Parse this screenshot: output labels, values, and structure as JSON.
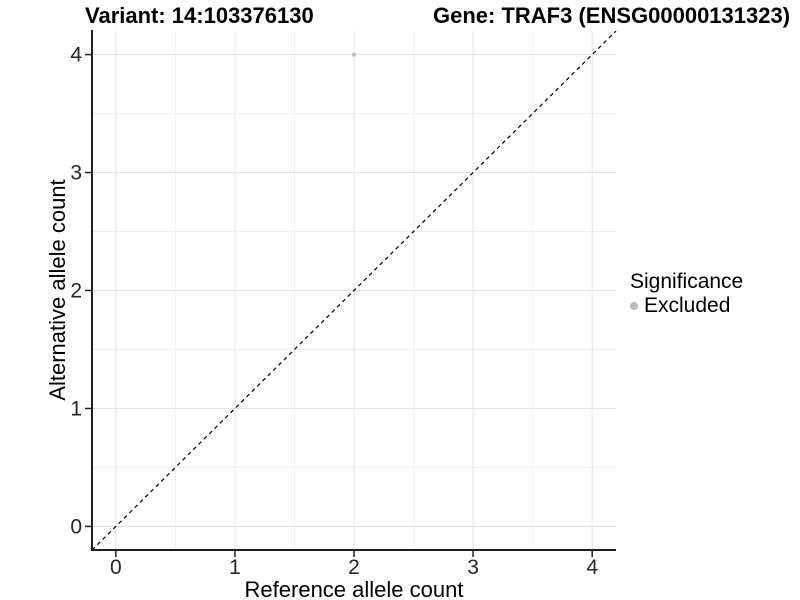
{
  "chart_data": {
    "type": "scatter",
    "title_left": "Variant: 14:103376130",
    "title_right": "Gene: TRAF3 (ENSG00000131323)",
    "xlabel": "Reference allele count",
    "ylabel": "Alternative allele count",
    "xlim": [
      -0.2,
      4.2
    ],
    "ylim": [
      -0.2,
      4.2
    ],
    "x_ticks": [
      0,
      1,
      2,
      3,
      4
    ],
    "y_ticks": [
      0,
      1,
      2,
      3,
      4
    ],
    "x_minor_ticks": [
      0.5,
      1.5,
      2.5,
      3.5
    ],
    "y_minor_ticks": [
      0.5,
      1.5,
      2.5,
      3.5
    ],
    "grid": "major and minor gridlines on white background",
    "legend_position": "right",
    "legend_title": "Significance",
    "series": [
      {
        "name": "Excluded",
        "color": "#bdbdbd",
        "marker": "circle",
        "points": [
          [
            2,
            4
          ]
        ]
      }
    ],
    "reference_line": {
      "slope": 1,
      "intercept": 0,
      "style": "dashed",
      "color": "#000000"
    }
  },
  "legend": {
    "title": "Significance",
    "items": [
      {
        "label": "Excluded",
        "color": "#bdbdbd"
      }
    ]
  },
  "style": {
    "background": "#ffffff",
    "major_grid": "#e3e3e3",
    "minor_grid": "#efefef",
    "axis_line": "#1f1f1f",
    "tick_label_color": "#262626",
    "point_color": "#bdbdbd"
  }
}
